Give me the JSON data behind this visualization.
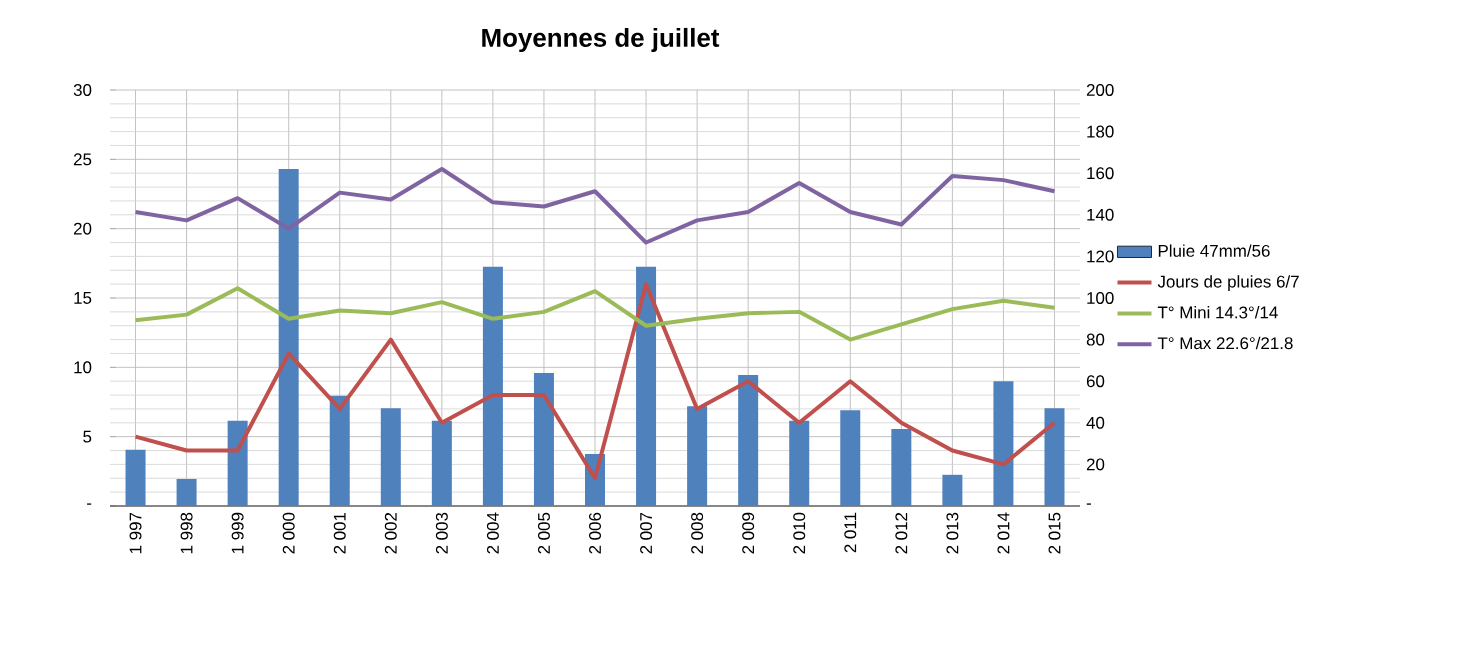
{
  "chart_data": {
    "type": "bar",
    "title": "Moyennes de juillet",
    "categories": [
      "1 997",
      "1 998",
      "1 999",
      "2 000",
      "2 001",
      "2 002",
      "2 003",
      "2 004",
      "2 005",
      "2 006",
      "2 007",
      "2 008",
      "2 009",
      "2 010",
      "2 011",
      "2 012",
      "2 013",
      "2 014",
      "2 015"
    ],
    "series": [
      {
        "name": "Pluie 47mm/56",
        "axis": "y2",
        "color": "#4f81bd",
        "values": [
          27,
          13,
          41,
          162,
          53,
          47,
          41,
          115,
          64,
          25,
          115,
          48,
          63,
          41,
          46,
          37,
          15,
          60,
          47
        ]
      },
      {
        "name": "Jours de pluies 6/7",
        "type": "line",
        "color": "#c0504d",
        "values": [
          5,
          4,
          4,
          11,
          7,
          12,
          6,
          8,
          8,
          2,
          16,
          7,
          9,
          6,
          9,
          6,
          4,
          3,
          6
        ]
      },
      {
        "name": "T° Mini 14.3°/14",
        "type": "line",
        "color": "#9bbb59",
        "values": [
          13.4,
          13.8,
          15.7,
          13.5,
          14.1,
          13.9,
          14.7,
          13.5,
          14.0,
          15.5,
          13.0,
          13.5,
          13.9,
          14.0,
          12.0,
          13.1,
          14.2,
          14.8,
          14.3
        ]
      },
      {
        "name": "T° Max 22.6°/21.8",
        "type": "line",
        "color": "#8064a2",
        "values": [
          21.2,
          20.6,
          22.2,
          20.0,
          22.6,
          22.1,
          24.3,
          21.9,
          21.6,
          22.7,
          19.0,
          20.6,
          21.2,
          23.3,
          21.2,
          20.3,
          23.8,
          23.5,
          22.7
        ]
      }
    ],
    "ylim": [
      0,
      30
    ],
    "yticks": [
      {
        "value": 0,
        "label": "-"
      },
      5,
      10,
      15,
      20,
      25,
      30
    ],
    "y2lim": [
      0,
      200
    ],
    "y2ticks": [
      {
        "value": 0,
        "label": "-"
      },
      20,
      40,
      60,
      80,
      100,
      120,
      140,
      160,
      180,
      200
    ],
    "grid": true,
    "legend": "right",
    "marker": "none",
    "line_style": "solid"
  }
}
